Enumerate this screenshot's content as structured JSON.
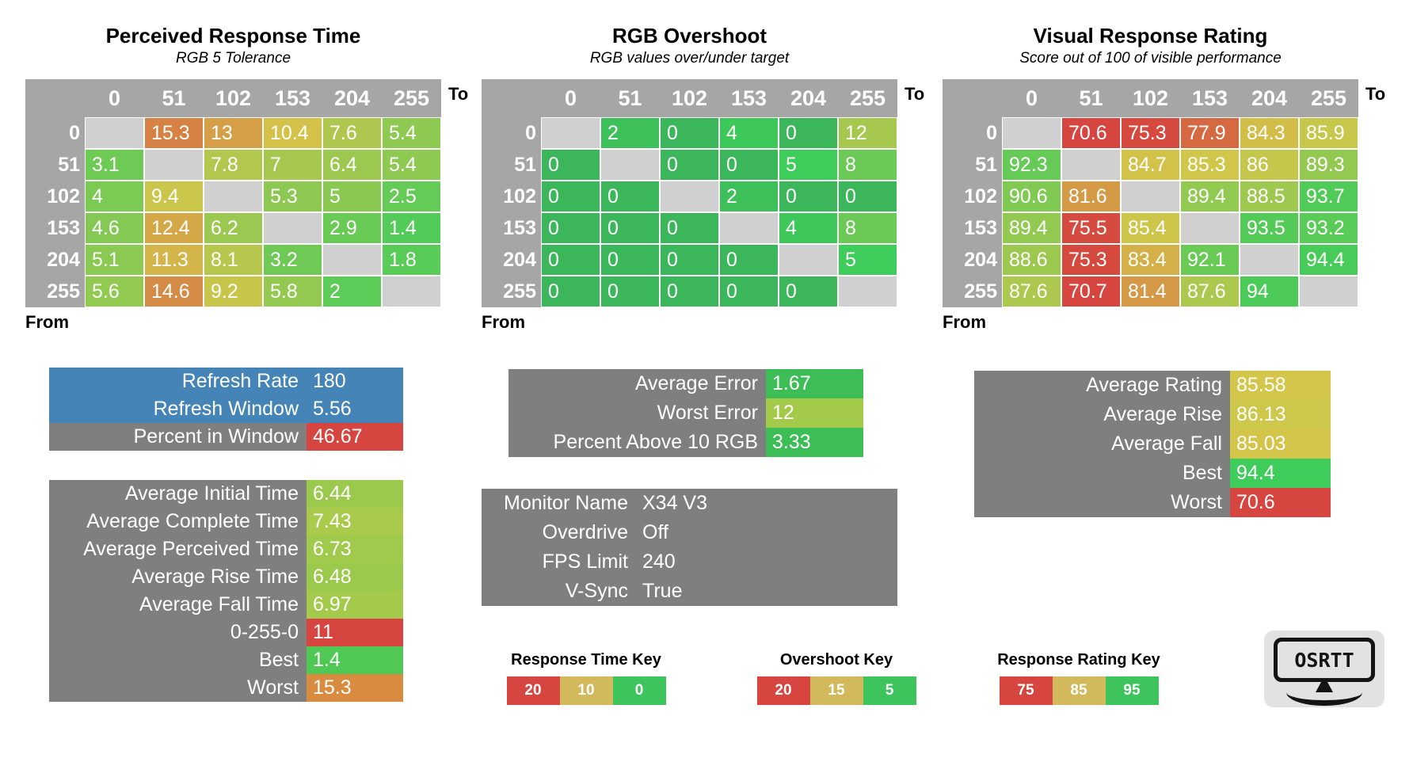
{
  "chart_data": [
    {
      "type": "heatmap",
      "title": "Perceived Response Time",
      "subtitle": "RGB 5 Tolerance",
      "x_axis_label": "To",
      "y_axis_label": "From",
      "categories": [
        "0",
        "51",
        "102",
        "153",
        "204",
        "255"
      ],
      "rows": [
        "0",
        "51",
        "102",
        "153",
        "204",
        "255"
      ],
      "values": [
        [
          null,
          "15.3",
          "13",
          "10.4",
          "7.6",
          "5.4"
        ],
        [
          "3.1",
          null,
          "7.8",
          "7",
          "6.4",
          "5.4"
        ],
        [
          "4",
          "9.4",
          null,
          "5.3",
          "5",
          "2.5"
        ],
        [
          "4.6",
          "12.4",
          "6.2",
          null,
          "2.9",
          "1.4"
        ],
        [
          "5.1",
          "11.3",
          "8.1",
          "3.2",
          null,
          "1.8"
        ],
        [
          "5.6",
          "14.6",
          "9.2",
          "5.8",
          "2",
          null
        ]
      ],
      "color_scale": {
        "anchors": [
          [
            0,
            "#3ecc5a"
          ],
          [
            10,
            "#d3c64a"
          ],
          [
            20,
            "#d6453f"
          ]
        ]
      }
    },
    {
      "type": "heatmap",
      "title": "RGB Overshoot",
      "subtitle": "RGB values over/under target",
      "x_axis_label": "To",
      "y_axis_label": "From",
      "categories": [
        "0",
        "51",
        "102",
        "153",
        "204",
        "255"
      ],
      "rows": [
        "0",
        "51",
        "102",
        "153",
        "204",
        "255"
      ],
      "values": [
        [
          null,
          "2",
          "0",
          "4",
          "0",
          "12"
        ],
        [
          "0",
          null,
          "0",
          "0",
          "5",
          "8"
        ],
        [
          "0",
          "0",
          null,
          "2",
          "0",
          "0"
        ],
        [
          "0",
          "0",
          "0",
          null,
          "4",
          "8"
        ],
        [
          "0",
          "0",
          "0",
          "0",
          null,
          "5"
        ],
        [
          "0",
          "0",
          "0",
          "0",
          "0",
          null
        ]
      ],
      "color_scale": {
        "anchors": [
          [
            0,
            "#3cb65a"
          ],
          [
            5,
            "#3ecc5a"
          ],
          [
            15,
            "#d3c64a"
          ],
          [
            20,
            "#d6453f"
          ]
        ]
      }
    },
    {
      "type": "heatmap",
      "title": "Visual Response Rating",
      "subtitle": "Score out of 100 of visible performance",
      "x_axis_label": "To",
      "y_axis_label": "From",
      "categories": [
        "0",
        "51",
        "102",
        "153",
        "204",
        "255"
      ],
      "rows": [
        "0",
        "51",
        "102",
        "153",
        "204",
        "255"
      ],
      "values": [
        [
          null,
          "70.6",
          "75.3",
          "77.9",
          "84.3",
          "85.9"
        ],
        [
          "92.3",
          null,
          "84.7",
          "85.3",
          "86",
          "89.3"
        ],
        [
          "90.6",
          "81.6",
          null,
          "89.4",
          "88.5",
          "93.7"
        ],
        [
          "89.4",
          "75.5",
          "85.4",
          null,
          "93.5",
          "93.2"
        ],
        [
          "88.6",
          "75.3",
          "83.4",
          "92.1",
          null,
          "94.4"
        ],
        [
          "87.6",
          "70.7",
          "81.4",
          "87.6",
          "94",
          null
        ]
      ],
      "color_scale": {
        "anchors": [
          [
            75,
            "#d6453f"
          ],
          [
            85,
            "#d3c64a"
          ],
          [
            95,
            "#3ecc5a"
          ]
        ]
      }
    }
  ],
  "panels": {
    "refresh": {
      "rows": [
        {
          "label": "Refresh Rate",
          "value": "180",
          "row_color": "#4484b6",
          "value_color": ""
        },
        {
          "label": "Refresh Window",
          "value": "5.56",
          "row_color": "#4484b6",
          "value_color": ""
        },
        {
          "label": "Percent in Window",
          "value": "46.67",
          "row_color": "#7f7f7f",
          "value_color": "#d6453f"
        }
      ]
    },
    "times": {
      "rows": [
        {
          "label": "Average Initial Time",
          "value": "6.44",
          "row_color": "#7f7f7f",
          "value_color": "#9bc94c"
        },
        {
          "label": "Average Complete Time",
          "value": "7.43",
          "row_color": "#7f7f7f",
          "value_color": "#a9ca4a"
        },
        {
          "label": "Average Perceived Time",
          "value": "6.73",
          "row_color": "#7f7f7f",
          "value_color": "#9fca4b"
        },
        {
          "label": "Average Rise Time",
          "value": "6.48",
          "row_color": "#7f7f7f",
          "value_color": "#9bc94c"
        },
        {
          "label": "Average Fall Time",
          "value": "6.97",
          "row_color": "#7f7f7f",
          "value_color": "#a3ca4b"
        },
        {
          "label": "0-255-0",
          "value": "11",
          "row_color": "#7f7f7f",
          "value_color": "#d6453f"
        },
        {
          "label": "Best",
          "value": "1.4",
          "row_color": "#7f7f7f",
          "value_color": "#4fc854"
        },
        {
          "label": "Worst",
          "value": "15.3",
          "row_color": "#7f7f7f",
          "value_color": "#d98b40"
        }
      ]
    },
    "error": {
      "rows": [
        {
          "label": "Average Error",
          "value": "1.67",
          "row_color": "#7f7f7f",
          "value_color": "#3cbd56"
        },
        {
          "label": "Worst Error",
          "value": "12",
          "row_color": "#7f7f7f",
          "value_color": "#a4ca4a"
        },
        {
          "label": "Percent Above 10 RGB",
          "value": "3.33",
          "row_color": "#7f7f7f",
          "value_color": "#3cbd56"
        }
      ]
    },
    "monitor": {
      "rows": [
        {
          "label": "Monitor Name",
          "value": "X34 V3",
          "row_color": "#7f7f7f",
          "value_color": ""
        },
        {
          "label": "Overdrive",
          "value": "Off",
          "row_color": "#7f7f7f",
          "value_color": ""
        },
        {
          "label": "FPS Limit",
          "value": "240",
          "row_color": "#7f7f7f",
          "value_color": ""
        },
        {
          "label": "V-Sync",
          "value": "True",
          "row_color": "#7f7f7f",
          "value_color": ""
        }
      ]
    },
    "rating": {
      "rows": [
        {
          "label": "Average Rating",
          "value": "85.58",
          "row_color": "#7f7f7f",
          "value_color": "#d3c64a"
        },
        {
          "label": "Average Rise",
          "value": "86.13",
          "row_color": "#7f7f7f",
          "value_color": "#cdc84b"
        },
        {
          "label": "Average Fall",
          "value": "85.03",
          "row_color": "#7f7f7f",
          "value_color": "#d3c44a"
        },
        {
          "label": "Best",
          "value": "94.4",
          "row_color": "#7f7f7f",
          "value_color": "#3ecc5a"
        },
        {
          "label": "Worst",
          "value": "70.6",
          "row_color": "#7f7f7f",
          "value_color": "#d6453f"
        }
      ]
    }
  },
  "keys": [
    {
      "title": "Response Time Key",
      "segments": [
        {
          "label": "20",
          "color": "#d6453f"
        },
        {
          "label": "10",
          "color": "#d2b95c"
        },
        {
          "label": "0",
          "color": "#3ec45d"
        }
      ]
    },
    {
      "title": "Overshoot Key",
      "segments": [
        {
          "label": "20",
          "color": "#d6453f"
        },
        {
          "label": "15",
          "color": "#d2b95c"
        },
        {
          "label": "5",
          "color": "#3ec45d"
        }
      ]
    },
    {
      "title": "Response Rating Key",
      "segments": [
        {
          "label": "75",
          "color": "#d6453f"
        },
        {
          "label": "85",
          "color": "#d2b95c"
        },
        {
          "label": "95",
          "color": "#3ec45d"
        }
      ]
    }
  ],
  "logo": {
    "text": "OSRTT"
  },
  "colors": {
    "header_gray": "#a6a6a6",
    "diagonal_gray": "#d0d0d0",
    "panel_gray": "#7f7f7f",
    "panel_blue": "#4484b6",
    "status_red": "#d6453f",
    "status_yellow": "#d3c64a",
    "status_green": "#3ecc5a"
  }
}
